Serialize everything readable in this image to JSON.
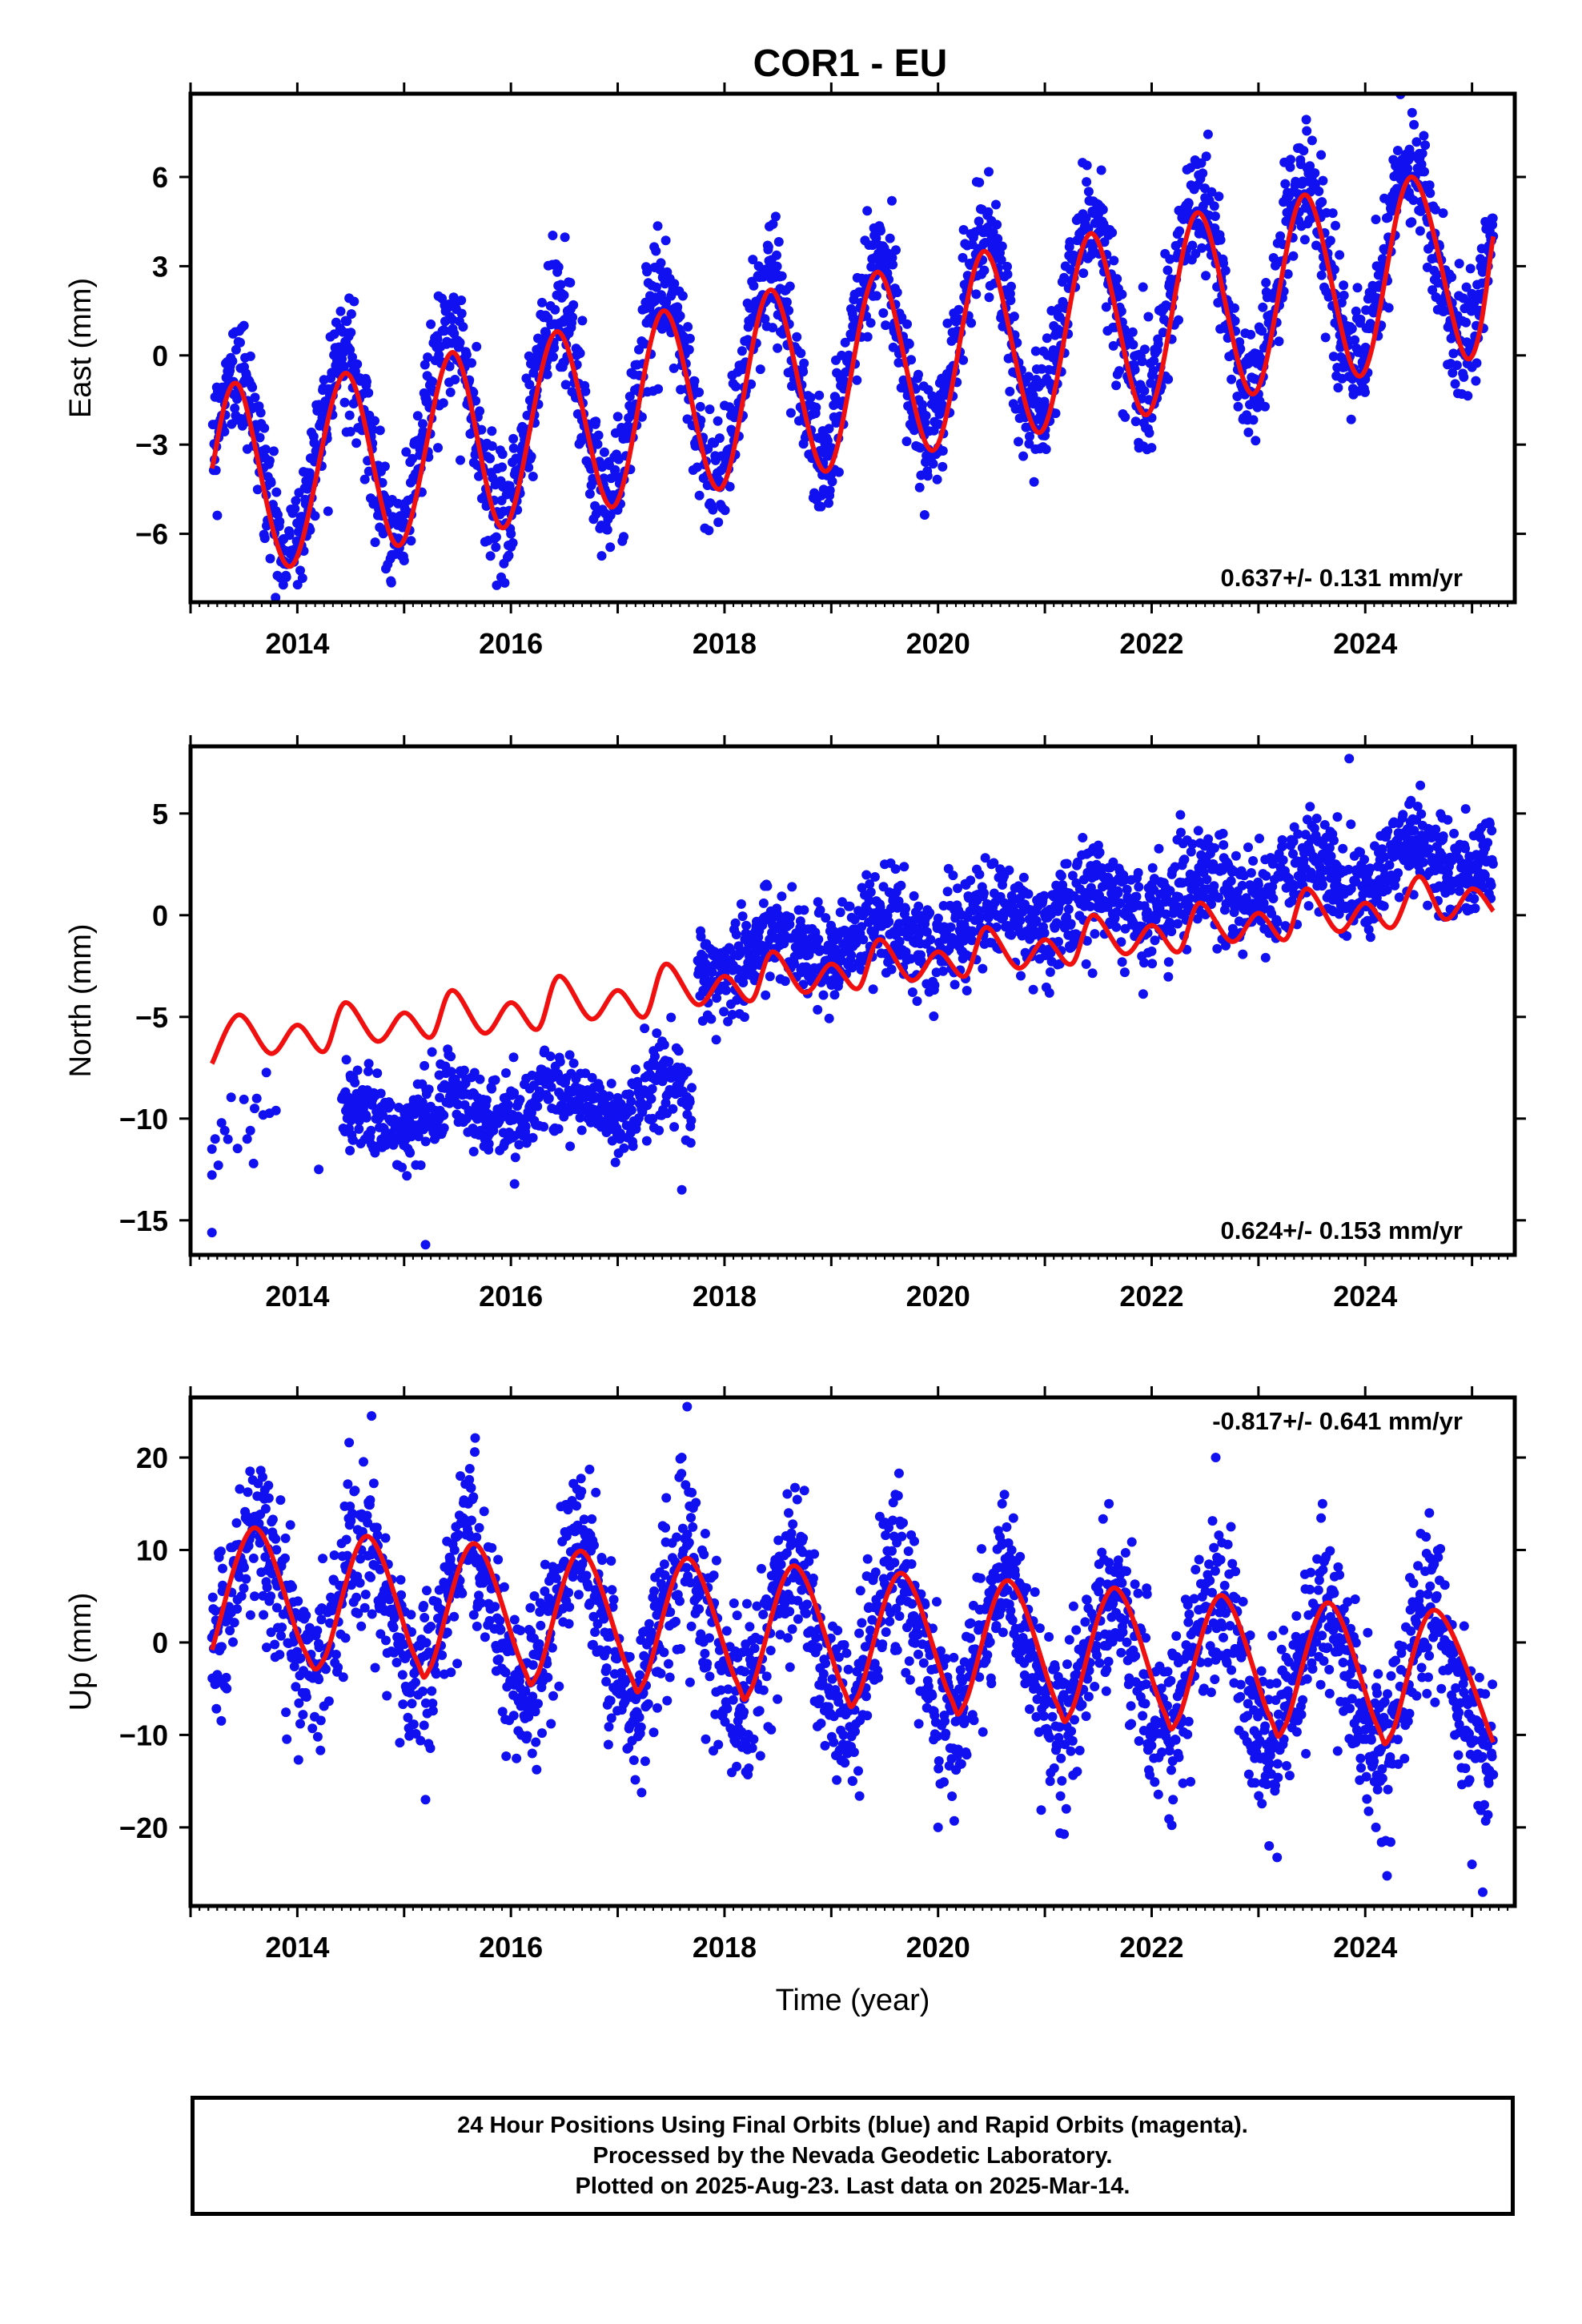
{
  "title": "COR1 - EU",
  "colors": {
    "data_points": "#1010f0",
    "model_line": "#f01010",
    "frame": "#000000"
  },
  "chart_data": [
    {
      "type": "scatter",
      "component": "east",
      "title": "",
      "xlabel": "",
      "ylabel": "East (mm)",
      "xlim": [
        2013.0,
        2025.4
      ],
      "ylim": [
        -8.3,
        8.8
      ],
      "x_ticks": [
        2014,
        2016,
        2018,
        2020,
        2022,
        2024
      ],
      "y_ticks": [
        -6,
        -3,
        0,
        3,
        6
      ],
      "rate_label": "0.637+/- 0.131 mm/yr",
      "series": [
        {
          "style": "points",
          "color": "#1010f0",
          "model": {
            "start": 2013.2,
            "end": 2025.2,
            "offset": -3.9,
            "slope": 0.64,
            "amp": 3.2,
            "peak": 2013.42,
            "noise": 1.0
          },
          "sampled": [
            [
              2013.3,
              -2.4
            ],
            [
              2013.5,
              1.0
            ],
            [
              2014.5,
              -0.6
            ],
            [
              2015.0,
              -6.9
            ],
            [
              2015.5,
              0.5
            ],
            [
              2016.0,
              -6.0
            ],
            [
              2016.5,
              1.2
            ],
            [
              2017.0,
              -5.2
            ],
            [
              2017.5,
              2.0
            ],
            [
              2018.0,
              -4.3
            ],
            [
              2018.5,
              2.7
            ],
            [
              2019.0,
              -4.0
            ],
            [
              2019.5,
              3.2
            ],
            [
              2020.0,
              -3.1
            ],
            [
              2020.5,
              3.9
            ],
            [
              2021.0,
              -2.7
            ],
            [
              2021.5,
              4.6
            ],
            [
              2022.0,
              -2.1
            ],
            [
              2022.5,
              5.3
            ],
            [
              2023.0,
              -1.3
            ],
            [
              2023.5,
              6.0
            ],
            [
              2024.0,
              -0.8
            ],
            [
              2024.5,
              6.6
            ],
            [
              2025.0,
              -0.4
            ],
            [
              2025.15,
              3.0
            ]
          ]
        },
        {
          "style": "line",
          "color": "#f01010",
          "points": [
            [
              2013.2,
              -3.8
            ],
            [
              2013.45,
              -1.0
            ],
            [
              2013.93,
              -7.1
            ],
            [
              2014.45,
              -0.6
            ],
            [
              2014.95,
              -6.4
            ],
            [
              2015.45,
              0.1
            ],
            [
              2015.93,
              -5.8
            ],
            [
              2016.43,
              0.8
            ],
            [
              2016.95,
              -5.1
            ],
            [
              2017.43,
              1.5
            ],
            [
              2017.95,
              -4.5
            ],
            [
              2018.43,
              2.2
            ],
            [
              2018.95,
              -3.9
            ],
            [
              2019.43,
              2.8
            ],
            [
              2019.95,
              -3.2
            ],
            [
              2020.43,
              3.5
            ],
            [
              2020.95,
              -2.6
            ],
            [
              2021.43,
              4.1
            ],
            [
              2021.95,
              -2.0
            ],
            [
              2022.43,
              4.8
            ],
            [
              2022.95,
              -1.3
            ],
            [
              2023.43,
              5.4
            ],
            [
              2023.95,
              -0.7
            ],
            [
              2024.43,
              6.0
            ],
            [
              2024.95,
              -0.1
            ],
            [
              2025.2,
              4.0
            ]
          ]
        }
      ]
    },
    {
      "type": "scatter",
      "component": "north",
      "title": "",
      "xlabel": "",
      "ylabel": "North (mm)",
      "xlim": [
        2013.0,
        2025.4
      ],
      "ylim": [
        -16.7,
        8.3
      ],
      "x_ticks": [
        2014,
        2016,
        2018,
        2020,
        2022,
        2024
      ],
      "y_ticks": [
        -15,
        -10,
        -5,
        0,
        5
      ],
      "rate_label": "0.624+/- 0.153 mm/yr",
      "series": [
        {
          "style": "points",
          "color": "#1010f0",
          "segments": [
            {
              "start": 2013.2,
              "end": 2013.8,
              "offset": -11.5,
              "slope": 3.0,
              "noise": 1.3
            },
            {
              "start": 2014.4,
              "end": 2017.7,
              "offset": -10.0,
              "slope": 0.35,
              "noise": 1.0
            },
            {
              "start": 2017.75,
              "end": 2025.2,
              "offset": -2.3,
              "slope": 0.72,
              "noise": 1.2
            }
          ],
          "sampled": [
            [
              2013.2,
              -15.6
            ],
            [
              2013.2,
              -11.5
            ],
            [
              2013.6,
              -9.5
            ],
            [
              2014.2,
              -12.5
            ],
            [
              2014.5,
              -8.0
            ],
            [
              2015.3,
              -10.5
            ],
            [
              2015.2,
              -16.2
            ],
            [
              2016.0,
              -10.0
            ],
            [
              2016.5,
              -9.0
            ],
            [
              2017.0,
              -9.5
            ],
            [
              2017.5,
              -8.0
            ],
            [
              2017.6,
              -13.5
            ],
            [
              2018.0,
              -2.0
            ],
            [
              2018.5,
              0.0
            ],
            [
              2019.0,
              -1.5
            ],
            [
              2019.5,
              2.5
            ],
            [
              2020.0,
              -0.5
            ],
            [
              2020.5,
              2.5
            ],
            [
              2021.0,
              0.0
            ],
            [
              2021.5,
              3.0
            ],
            [
              2022.0,
              1.5
            ],
            [
              2022.5,
              2.5
            ],
            [
              2023.0,
              1.5
            ],
            [
              2023.6,
              3.0
            ],
            [
              2023.85,
              7.7
            ],
            [
              2024.2,
              4.0
            ],
            [
              2024.7,
              3.0
            ],
            [
              2025.1,
              2.0
            ]
          ]
        },
        {
          "style": "line",
          "color": "#f01010",
          "points": [
            [
              2013.2,
              -7.3
            ],
            [
              2013.45,
              -4.9
            ],
            [
              2013.75,
              -6.8
            ],
            [
              2014.0,
              -5.4
            ],
            [
              2014.25,
              -6.7
            ],
            [
              2014.45,
              -4.3
            ],
            [
              2014.75,
              -6.2
            ],
            [
              2015.0,
              -4.8
            ],
            [
              2015.25,
              -6.0
            ],
            [
              2015.45,
              -3.7
            ],
            [
              2015.75,
              -5.8
            ],
            [
              2016.0,
              -4.3
            ],
            [
              2016.25,
              -5.6
            ],
            [
              2016.45,
              -3.0
            ],
            [
              2016.75,
              -5.1
            ],
            [
              2017.0,
              -3.7
            ],
            [
              2017.25,
              -5.0
            ],
            [
              2017.45,
              -2.4
            ],
            [
              2017.75,
              -4.4
            ],
            [
              2018.0,
              -3.0
            ],
            [
              2018.25,
              -4.2
            ],
            [
              2018.45,
              -1.8
            ],
            [
              2018.75,
              -3.8
            ],
            [
              2019.0,
              -2.4
            ],
            [
              2019.25,
              -3.6
            ],
            [
              2019.45,
              -1.2
            ],
            [
              2019.75,
              -3.2
            ],
            [
              2020.0,
              -1.8
            ],
            [
              2020.25,
              -3.0
            ],
            [
              2020.45,
              -0.6
            ],
            [
              2020.75,
              -2.6
            ],
            [
              2021.0,
              -1.2
            ],
            [
              2021.25,
              -2.4
            ],
            [
              2021.45,
              0.0
            ],
            [
              2021.75,
              -1.9
            ],
            [
              2022.0,
              -0.5
            ],
            [
              2022.25,
              -1.8
            ],
            [
              2022.45,
              0.6
            ],
            [
              2022.75,
              -1.3
            ],
            [
              2023.0,
              0.1
            ],
            [
              2023.25,
              -1.2
            ],
            [
              2023.45,
              1.3
            ],
            [
              2023.75,
              -0.8
            ],
            [
              2024.0,
              0.6
            ],
            [
              2024.25,
              -0.6
            ],
            [
              2024.5,
              1.9
            ],
            [
              2024.75,
              -0.2
            ],
            [
              2025.0,
              1.3
            ],
            [
              2025.2,
              0.2
            ]
          ]
        }
      ]
    },
    {
      "type": "scatter",
      "component": "up",
      "title": "",
      "xlabel": "Time (year)",
      "ylabel": "Up (mm)",
      "xlim": [
        2013.0,
        2025.4
      ],
      "ylim": [
        -28.5,
        26.5
      ],
      "x_ticks": [
        2014,
        2016,
        2018,
        2020,
        2022,
        2024
      ],
      "y_ticks": [
        -20,
        -10,
        0,
        10,
        20
      ],
      "rate_label": "-0.817+/- 0.641 mm/yr",
      "series": [
        {
          "style": "points",
          "color": "#1010f0",
          "model": {
            "start": 2013.2,
            "end": 2025.2,
            "offset": 5.0,
            "slope": -0.82,
            "amp": 7.5,
            "peak": 2013.62,
            "noise": 4.3
          },
          "sampled": [
            [
              2013.3,
              8.0
            ],
            [
              2013.6,
              5.0
            ],
            [
              2014.2,
              -4.0
            ],
            [
              2014.6,
              10.0
            ],
            [
              2015.2,
              -17.0
            ],
            [
              2015.6,
              15.0
            ],
            [
              2016.2,
              -12.0
            ],
            [
              2016.6,
              12.0
            ],
            [
              2017.2,
              -10.0
            ],
            [
              2017.6,
              20.0
            ],
            [
              2017.65,
              25.5
            ],
            [
              2018.2,
              -14.0
            ],
            [
              2018.6,
              14.0
            ],
            [
              2019.2,
              -15.0
            ],
            [
              2019.6,
              16.0
            ],
            [
              2020.0,
              -20.0
            ],
            [
              2020.6,
              15.0
            ],
            [
              2021.2,
              -18.0
            ],
            [
              2021.6,
              15.0
            ],
            [
              2022.2,
              -17.0
            ],
            [
              2022.6,
              20.0
            ],
            [
              2023.1,
              -22.0
            ],
            [
              2023.6,
              15.0
            ],
            [
              2024.1,
              -20.0
            ],
            [
              2024.6,
              14.0
            ],
            [
              2025.0,
              -24.0
            ],
            [
              2025.1,
              -27.0
            ]
          ]
        },
        {
          "style": "line",
          "color": "#f01010",
          "points": [
            [
              2013.2,
              -0.8
            ],
            [
              2013.6,
              12.4
            ],
            [
              2014.05,
              -0.5
            ],
            [
              2014.25,
              -1.8
            ],
            [
              2014.65,
              11.5
            ],
            [
              2015.1,
              -1.5
            ],
            [
              2015.25,
              -2.6
            ],
            [
              2015.65,
              10.7
            ],
            [
              2016.1,
              -2.3
            ],
            [
              2016.25,
              -3.4
            ],
            [
              2016.65,
              9.9
            ],
            [
              2017.1,
              -3.1
            ],
            [
              2017.25,
              -4.2
            ],
            [
              2017.65,
              9.1
            ],
            [
              2018.1,
              -3.9
            ],
            [
              2018.25,
              -5.0
            ],
            [
              2018.65,
              8.3
            ],
            [
              2019.1,
              -4.7
            ],
            [
              2019.25,
              -5.8
            ],
            [
              2019.65,
              7.5
            ],
            [
              2020.1,
              -5.5
            ],
            [
              2020.25,
              -6.6
            ],
            [
              2020.65,
              6.7
            ],
            [
              2021.1,
              -6.3
            ],
            [
              2021.25,
              -7.4
            ],
            [
              2021.65,
              5.9
            ],
            [
              2022.1,
              -7.1
            ],
            [
              2022.25,
              -8.2
            ],
            [
              2022.65,
              5.1
            ],
            [
              2023.1,
              -7.9
            ],
            [
              2023.25,
              -9.0
            ],
            [
              2023.65,
              4.3
            ],
            [
              2024.1,
              -8.7
            ],
            [
              2024.25,
              -9.8
            ],
            [
              2024.65,
              3.5
            ],
            [
              2025.2,
              -10.8
            ]
          ]
        }
      ]
    }
  ],
  "caption": {
    "line1": "24 Hour Positions Using Final Orbits (blue) and Rapid Orbits (magenta).",
    "line2": "Processed by the Nevada Geodetic Laboratory.",
    "line3": "Plotted on 2025-Aug-23. Last data on 2025-Mar-14."
  }
}
